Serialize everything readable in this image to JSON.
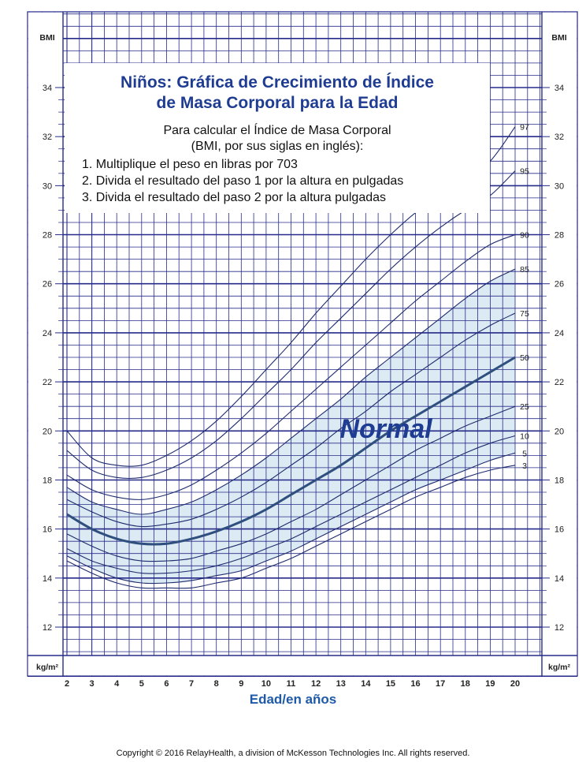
{
  "chart_data": {
    "type": "line",
    "title": "Niños: Gráfica de Crecimiento de Índice de Masa Corporal para la Edad",
    "title_lines": [
      "Niños: Gráfica de Crecimiento de Índice",
      "de Masa Corporal para la Edad"
    ],
    "instructions": {
      "intro_lines": [
        "Para calcular el Índice de Masa Corporal",
        "(BMI, por sus siglas en inglés):"
      ],
      "steps": [
        "1.  Multiplique el peso en libras por 703",
        "2.  Divida el resultado del paso 1 por la altura en pulgadas",
        "3.  Divida el resultado del paso 2 por la altura pulgadas"
      ]
    },
    "xlabel": "Edad/en años",
    "ylabel_top": "BMI",
    "ylabel_bottom": "kg/m²",
    "x_ticks": [
      2,
      3,
      4,
      5,
      6,
      7,
      8,
      9,
      10,
      11,
      12,
      13,
      14,
      15,
      16,
      17,
      18,
      19,
      20
    ],
    "y_ticks": [
      12,
      14,
      16,
      18,
      20,
      22,
      24,
      26,
      28,
      30,
      32,
      34
    ],
    "xlim": [
      2,
      20
    ],
    "ylim": [
      10.5,
      36
    ],
    "normal_band": {
      "label": "Normal",
      "lower": "5",
      "upper": "85",
      "fill": "#dceaf3"
    },
    "x": [
      2,
      3,
      4,
      5,
      6,
      7,
      8,
      9,
      10,
      11,
      12,
      13,
      14,
      15,
      16,
      17,
      18,
      19,
      20
    ],
    "series": [
      {
        "name": "3",
        "values": [
          14.7,
          14.2,
          13.8,
          13.6,
          13.6,
          13.6,
          13.8,
          14.0,
          14.4,
          14.8,
          15.3,
          15.8,
          16.3,
          16.8,
          17.3,
          17.7,
          18.1,
          18.4,
          18.6
        ]
      },
      {
        "name": "5",
        "values": [
          14.9,
          14.4,
          14.0,
          13.8,
          13.8,
          13.9,
          14.1,
          14.3,
          14.7,
          15.1,
          15.6,
          16.1,
          16.6,
          17.1,
          17.6,
          18.0,
          18.4,
          18.8,
          19.1
        ]
      },
      {
        "name": "10",
        "values": [
          15.2,
          14.7,
          14.4,
          14.2,
          14.2,
          14.3,
          14.5,
          14.8,
          15.2,
          15.6,
          16.1,
          16.6,
          17.1,
          17.6,
          18.1,
          18.6,
          19.1,
          19.5,
          19.8
        ]
      },
      {
        "name": "25",
        "values": [
          15.8,
          15.3,
          14.9,
          14.7,
          14.7,
          14.8,
          15.1,
          15.4,
          15.8,
          16.3,
          16.8,
          17.4,
          18.0,
          18.6,
          19.2,
          19.7,
          20.2,
          20.6,
          21.0
        ]
      },
      {
        "name": "50",
        "values": [
          16.6,
          16.0,
          15.6,
          15.4,
          15.4,
          15.6,
          15.9,
          16.3,
          16.8,
          17.4,
          18.0,
          18.6,
          19.3,
          20.0,
          20.6,
          21.2,
          21.8,
          22.4,
          23.0
        ]
      },
      {
        "name": "75",
        "values": [
          17.2,
          16.7,
          16.3,
          16.1,
          16.2,
          16.4,
          16.8,
          17.3,
          17.9,
          18.6,
          19.3,
          20.1,
          20.8,
          21.6,
          22.3,
          23.0,
          23.7,
          24.3,
          24.8
        ]
      },
      {
        "name": "85",
        "values": [
          17.7,
          17.1,
          16.8,
          16.6,
          16.8,
          17.1,
          17.6,
          18.2,
          18.9,
          19.7,
          20.5,
          21.3,
          22.2,
          23.0,
          23.8,
          24.6,
          25.4,
          26.1,
          26.6
        ]
      },
      {
        "name": "90",
        "values": [
          18.2,
          17.6,
          17.3,
          17.2,
          17.4,
          17.8,
          18.4,
          19.1,
          19.9,
          20.8,
          21.7,
          22.6,
          23.5,
          24.4,
          25.3,
          26.1,
          26.9,
          27.6,
          28.0
        ]
      },
      {
        "name": "95",
        "values": [
          19.2,
          18.4,
          18.1,
          18.1,
          18.4,
          18.9,
          19.6,
          20.5,
          21.5,
          22.5,
          23.6,
          24.6,
          25.6,
          26.6,
          27.5,
          28.3,
          29.0,
          29.6,
          30.6
        ]
      },
      {
        "name": "97",
        "values": [
          20.0,
          18.9,
          18.6,
          18.6,
          19.0,
          19.6,
          20.4,
          21.4,
          22.5,
          23.6,
          24.8,
          25.9,
          27.0,
          28.0,
          28.9,
          29.6,
          30.3,
          31.0,
          32.4
        ]
      }
    ]
  },
  "footer": {
    "copyright": "Copyright © 2016 RelayHealth, a division of McKesson Technologies Inc. All rights reserved."
  },
  "colors": {
    "grid": "#262b8a",
    "curve": "#1f2c6e",
    "median": "#2f4f7e",
    "band": "#dceaf3",
    "title": "#1f3c93",
    "accent": "#1f5aa8"
  }
}
